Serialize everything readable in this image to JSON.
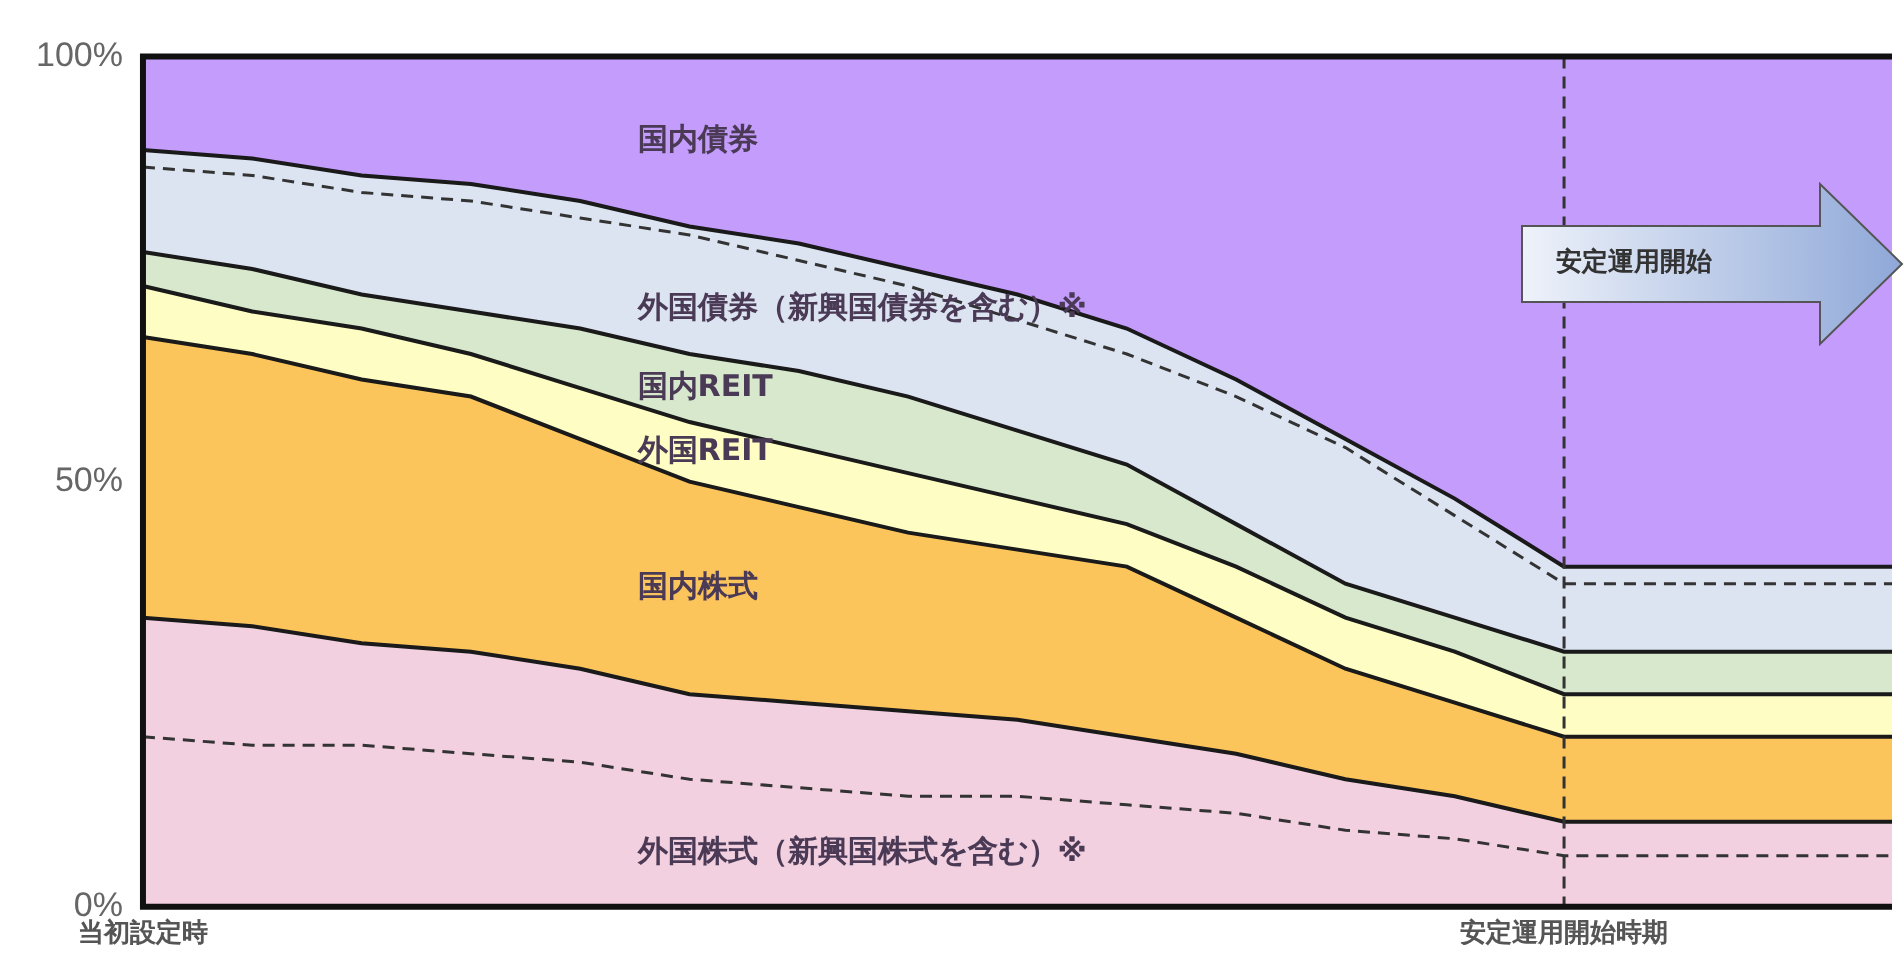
{
  "chart_data": {
    "type": "area",
    "stacked": true,
    "categories": [
      "当初設定時",
      null,
      null,
      null,
      null,
      null,
      null,
      null,
      null,
      null,
      null,
      null,
      null,
      "安定運用開始時期",
      null,
      null,
      null
    ],
    "ylim": [
      0,
      100
    ],
    "yticks": [
      {
        "value": 0,
        "label": "0%"
      },
      {
        "value": 50,
        "label": "50%"
      },
      {
        "value": 100,
        "label": "100%"
      }
    ],
    "legend": false,
    "series": [
      {
        "name": "外国株式（新興国株式を含む）※",
        "color": "#f2d0e0",
        "values": [
          34,
          33,
          31,
          30,
          28,
          25,
          24,
          23,
          22,
          20,
          18,
          15,
          13,
          10,
          10,
          10,
          10
        ]
      },
      {
        "name": "国内株式",
        "color": "#fcc55c",
        "values": [
          33,
          32,
          31,
          30,
          27,
          25,
          23,
          21,
          20,
          20,
          16,
          13,
          11,
          10,
          10,
          10,
          10
        ]
      },
      {
        "name": "外国REIT",
        "color": "#fdfdc4",
        "values": [
          6,
          5,
          6,
          5,
          6,
          7,
          7,
          7,
          6,
          5,
          6,
          6,
          6,
          5,
          5,
          5,
          5
        ]
      },
      {
        "name": "国内REIT",
        "color": "#d7e8cc",
        "values": [
          4,
          5,
          4,
          5,
          7,
          8,
          9,
          9,
          8,
          7,
          5,
          4,
          4,
          5,
          5,
          5,
          5
        ]
      },
      {
        "name": "外国債券（新興国債券を含む）※",
        "color": "#dce4f2",
        "values": [
          12,
          13,
          14,
          15,
          15,
          15,
          15,
          15,
          16,
          16,
          17,
          17,
          14,
          10,
          10,
          10,
          10
        ]
      },
      {
        "name": "国内債券",
        "color": "#c39cfc",
        "values": [
          11,
          12,
          14,
          15,
          17,
          20,
          22,
          25,
          28,
          32,
          38,
          45,
          52,
          60,
          60,
          60,
          60
        ]
      },
      {
        "type": "line",
        "color": "#333333",
        "line_style": "dashed",
        "values": [
          20,
          19,
          19,
          18,
          17,
          15,
          14,
          13,
          13,
          12,
          11,
          9,
          8,
          6,
          6,
          6,
          6
        ]
      },
      {
        "type": "line",
        "color": "#333333",
        "line_style": "dashed",
        "values": [
          87,
          86,
          84,
          83,
          81,
          79,
          76,
          73,
          69,
          65,
          60,
          54,
          46,
          38,
          38,
          38,
          38
        ]
      }
    ],
    "ref_lines": [
      {
        "axis": "x",
        "value": "安定運用開始時期",
        "color": "#333333",
        "line_style": "dashed"
      }
    ],
    "annotations": [
      "安定運用開始"
    ]
  }
}
